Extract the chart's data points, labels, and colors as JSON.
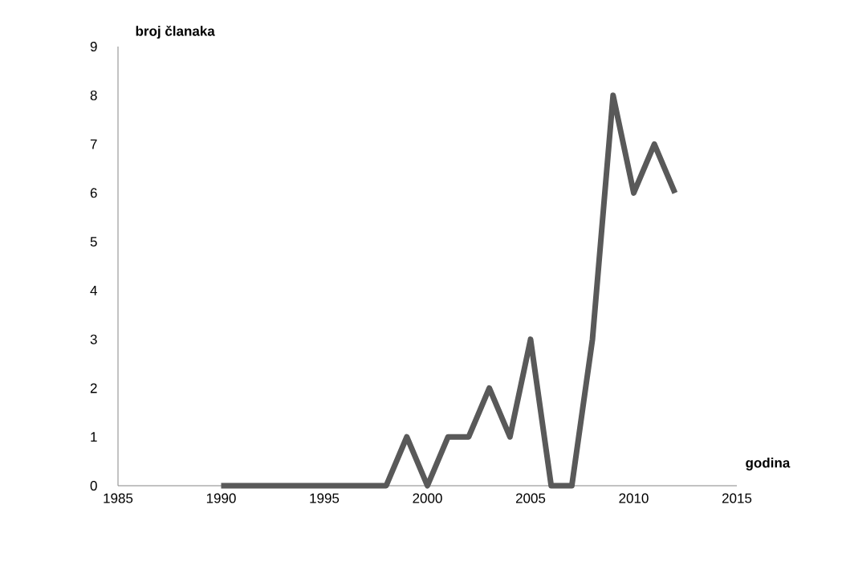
{
  "chart_data": {
    "type": "line",
    "xlabel": "godina",
    "ylabel": "broj članaka",
    "x": [
      1990,
      1991,
      1992,
      1993,
      1994,
      1995,
      1996,
      1997,
      1998,
      1999,
      2000,
      2001,
      2002,
      2003,
      2004,
      2005,
      2006,
      2007,
      2008,
      2009,
      2010,
      2011,
      2012
    ],
    "values": [
      0,
      0,
      0,
      0,
      0,
      0,
      0,
      0,
      0,
      1,
      0,
      1,
      1,
      2,
      1,
      3,
      0,
      0,
      3,
      8,
      6,
      7,
      6
    ],
    "color": "#595959",
    "xlim": [
      1985,
      2015
    ],
    "xticks": [
      1985,
      1990,
      1995,
      2000,
      2005,
      2010,
      2015
    ],
    "ylim": [
      0,
      9
    ],
    "yticks": [
      0,
      1,
      2,
      3,
      4,
      5,
      6,
      7,
      8,
      9
    ]
  }
}
